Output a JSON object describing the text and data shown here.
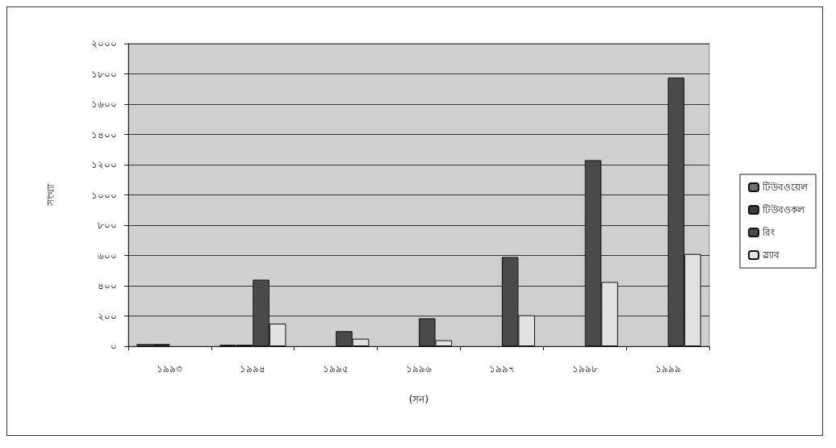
{
  "chart_data": {
    "type": "bar",
    "xlabel": "(সন)",
    "ylabel": "সংখ্যা",
    "categories": [
      "১৯৯৩",
      "১৯৯৪",
      "১৯৯৫",
      "১৯৯৬",
      "১৯৯৭",
      "১৯৯৮",
      "১৯৯৯"
    ],
    "series": [
      {
        "name": "টিউবওয়েল",
        "color": "#6e6e6e",
        "values": [
          15,
          10,
          null,
          null,
          null,
          null,
          null
        ]
      },
      {
        "name": "টিউবওকল",
        "color": "#3c3c3c",
        "values": [
          15,
          10,
          null,
          null,
          null,
          null,
          null
        ]
      },
      {
        "name": "রিং",
        "color": "#4a4a4a",
        "values": [
          null,
          440,
          100,
          185,
          590,
          1230,
          1775
        ]
      },
      {
        "name": "স্ল্যাব",
        "color": "#e2e2e2",
        "values": [
          null,
          150,
          50,
          40,
          205,
          425,
          610
        ]
      }
    ],
    "ylim": [
      0,
      2000
    ],
    "yticks": [
      {
        "value": 0,
        "label": "০"
      },
      {
        "value": 200,
        "label": "২০০"
      },
      {
        "value": 400,
        "label": "৪০০"
      },
      {
        "value": 600,
        "label": "৬০০"
      },
      {
        "value": 800,
        "label": "৮০০"
      },
      {
        "value": 1000,
        "label": "১০০০"
      },
      {
        "value": 1200,
        "label": "১২০০"
      },
      {
        "value": 1400,
        "label": "১৪০০"
      },
      {
        "value": 1600,
        "label": "১৬০০"
      },
      {
        "value": 1800,
        "label": "১৮০০"
      },
      {
        "value": 2000,
        "label": "২০০০"
      }
    ],
    "grid": "y",
    "legend": "right"
  }
}
